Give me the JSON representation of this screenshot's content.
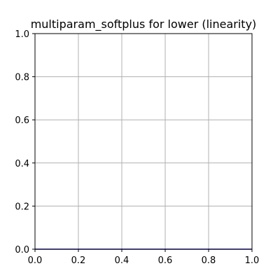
{
  "chart_data": {
    "type": "line",
    "title": "multiparam_softplus for lower (linearity)",
    "xlabel": "",
    "ylabel": "",
    "xlim": [
      0.0,
      1.0
    ],
    "ylim": [
      0.0,
      1.0
    ],
    "x_ticks": [
      0.0,
      0.2,
      0.4,
      0.6,
      0.8,
      1.0
    ],
    "y_ticks": [
      0.0,
      0.2,
      0.4,
      0.6,
      0.8,
      1.0
    ],
    "x_tick_labels": [
      "0.0",
      "0.2",
      "0.4",
      "0.6",
      "0.8",
      "1.0"
    ],
    "y_tick_labels": [
      "0.0",
      "0.2",
      "0.4",
      "0.6",
      "0.8",
      "1.0"
    ],
    "grid": true,
    "series": [
      {
        "color": "#0000cc",
        "x": [
          0.0,
          1.0
        ],
        "y": [
          0.0,
          0.0
        ]
      }
    ]
  }
}
